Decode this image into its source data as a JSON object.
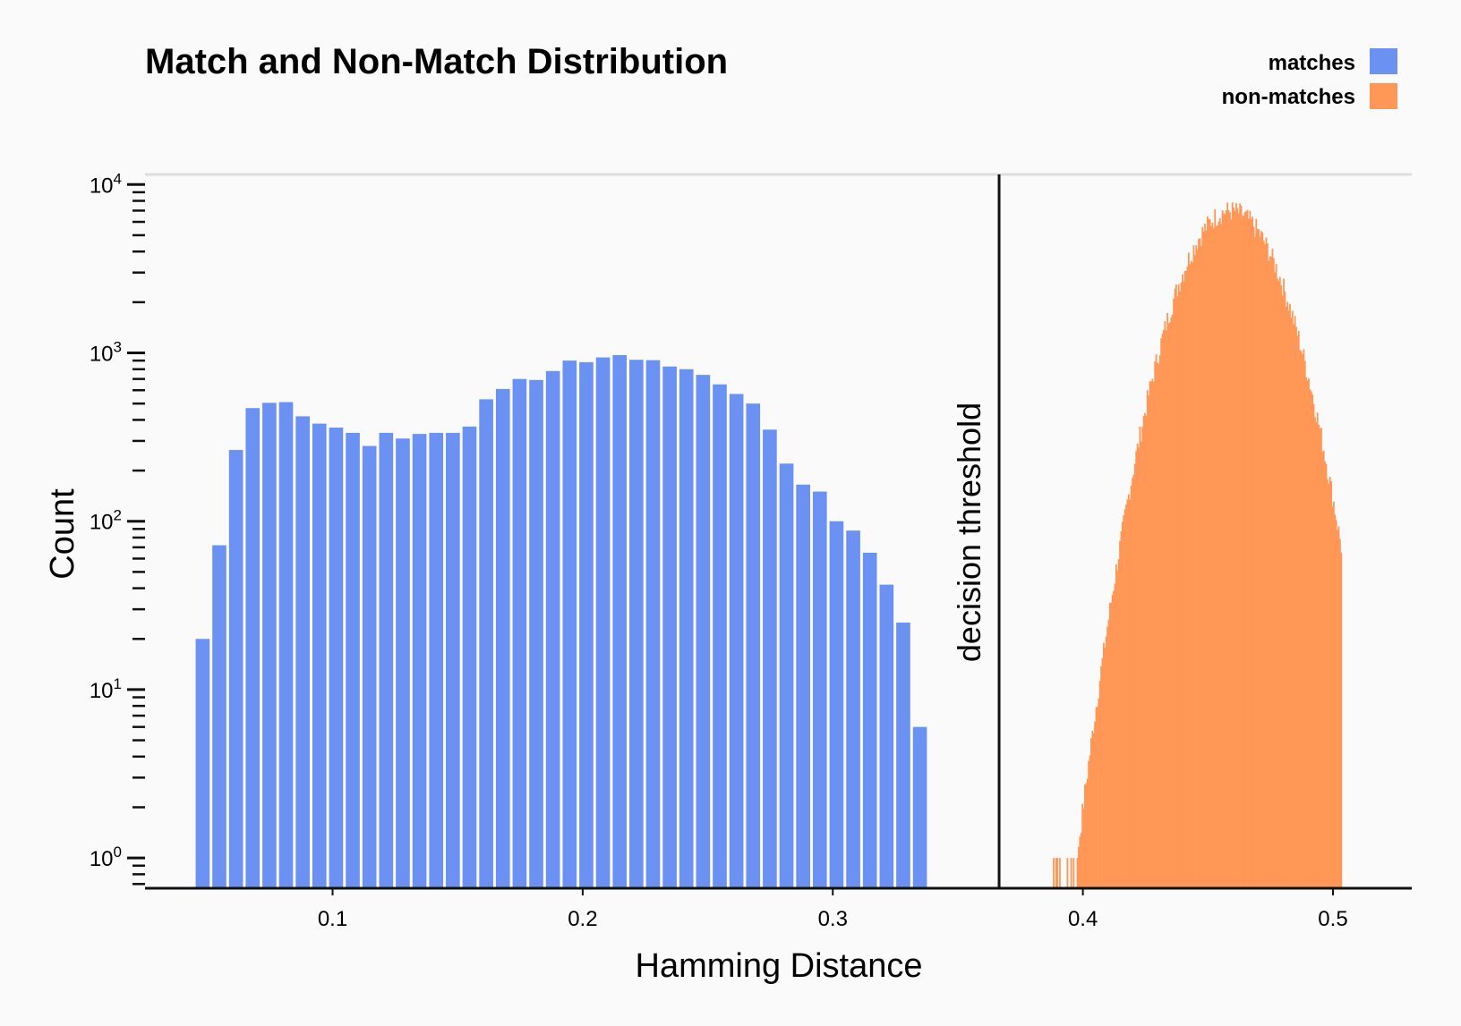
{
  "chart_data": {
    "type": "bar",
    "title": "Match and Non-Match Distribution",
    "xlabel": "Hamming Distance",
    "ylabel": "Count",
    "xlim": [
      0.025,
      0.5315
    ],
    "ylim_log10": [
      -0.18,
      4.06
    ],
    "yscale": "log",
    "grid": false,
    "legend_position": "top-right",
    "colors": {
      "matches": "#6b92f2",
      "non_matches": "#ff9757",
      "threshold": "#111111",
      "axis": "#111111",
      "top_line": "#dddddd"
    },
    "legend": [
      {
        "key": "matches",
        "label": "matches"
      },
      {
        "key": "non_matches",
        "label": "non-matches"
      }
    ],
    "xticks": [
      {
        "value": 0.1,
        "label": "0.1"
      },
      {
        "value": 0.2,
        "label": "0.2"
      },
      {
        "value": 0.3,
        "label": "0.3"
      },
      {
        "value": 0.4,
        "label": "0.4"
      },
      {
        "value": 0.5,
        "label": "0.5"
      }
    ],
    "yticks": [
      {
        "value": 1,
        "base": "10",
        "exp": "0"
      },
      {
        "value": 10,
        "base": "10",
        "exp": "1"
      },
      {
        "value": 100,
        "base": "10",
        "exp": "2"
      },
      {
        "value": 1000,
        "base": "10",
        "exp": "3"
      },
      {
        "value": 10000,
        "base": "10",
        "exp": "4"
      }
    ],
    "threshold": {
      "x": 0.3665,
      "label": "decision threshold"
    },
    "series": [
      {
        "name": "matches",
        "bin_width": 0.00667,
        "bin_start": 0.0447,
        "values": [
          20,
          72,
          265,
          470,
          505,
          510,
          420,
          380,
          360,
          335,
          280,
          335,
          310,
          330,
          335,
          335,
          365,
          530,
          610,
          700,
          690,
          780,
          900,
          880,
          940,
          970,
          910,
          905,
          830,
          800,
          740,
          650,
          570,
          500,
          350,
          220,
          165,
          150,
          100,
          88,
          65,
          42,
          25,
          6
        ]
      },
      {
        "name": "non-matches",
        "distribution": "approx. normal",
        "mean": 0.459,
        "std": 0.0146,
        "peak_count": 7000,
        "x_min": 0.388,
        "x_max": 0.503,
        "bin_width": 0.0005
      }
    ]
  }
}
